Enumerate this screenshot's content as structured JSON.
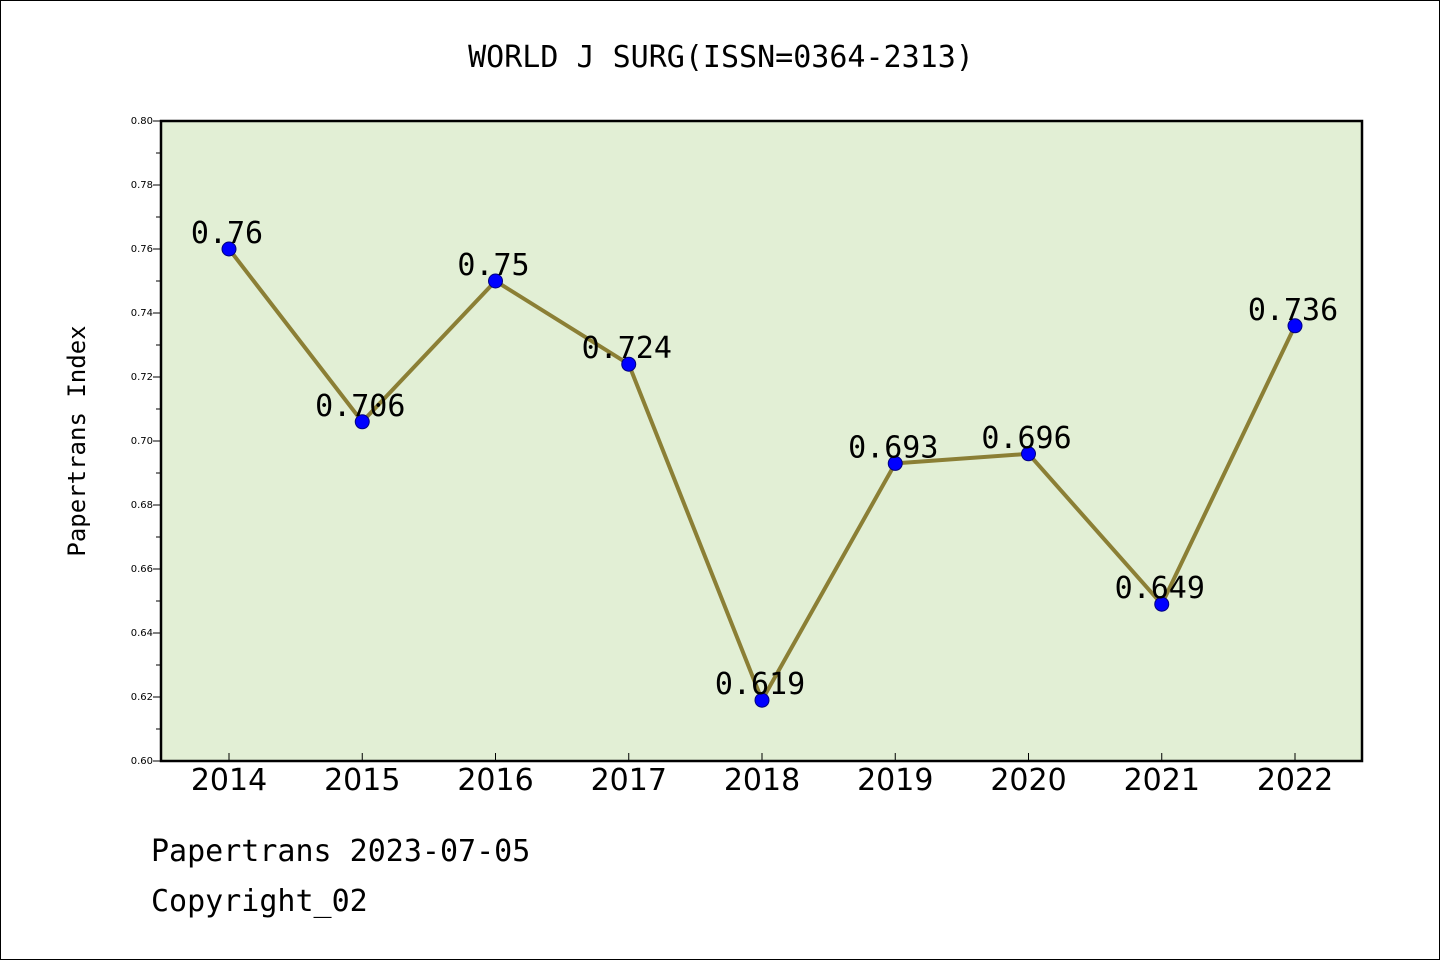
{
  "colors": {
    "plot_background": "#e2efd5",
    "line": "#8b7f35",
    "marker": "#0000ff",
    "axis": "#000000",
    "text": "#000000"
  },
  "footer": {
    "line1": "Papertrans 2023-07-05",
    "line2": "Copyright_02"
  },
  "chart_data": {
    "type": "line",
    "title": "WORLD J SURG(ISSN=0364-2313)",
    "xlabel": "",
    "ylabel": "Papertrans Index",
    "categories": [
      "2014",
      "2015",
      "2016",
      "2017",
      "2018",
      "2019",
      "2020",
      "2021",
      "2022"
    ],
    "values": [
      0.76,
      0.706,
      0.75,
      0.724,
      0.619,
      0.693,
      0.696,
      0.649,
      0.736
    ],
    "data_labels": [
      "0.76",
      "0.706",
      "0.75",
      "0.724",
      "0.619",
      "0.693",
      "0.696",
      "0.649",
      "0.736"
    ],
    "ylim": [
      0.6,
      0.8
    ],
    "yticks": [
      "0.60",
      "0.62",
      "0.64",
      "0.66",
      "0.68",
      "0.70",
      "0.72",
      "0.74",
      "0.76",
      "0.78",
      "0.80"
    ],
    "grid": false,
    "legend": "none"
  }
}
